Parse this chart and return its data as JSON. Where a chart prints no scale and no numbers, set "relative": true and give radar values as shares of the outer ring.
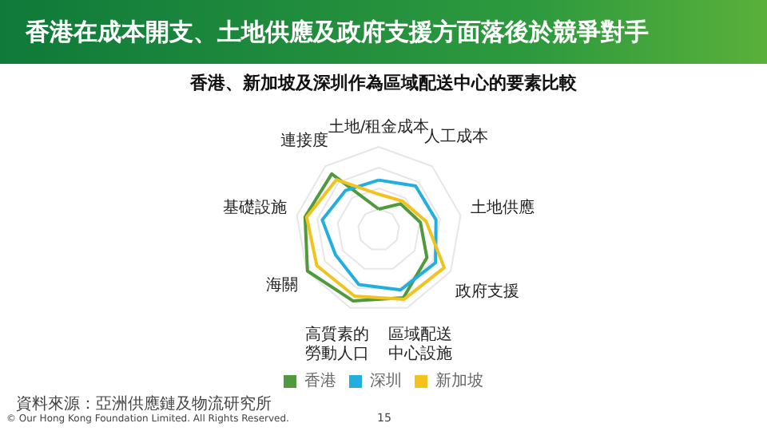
{
  "chart_data": {
    "type": "radar",
    "title": "香港在成本開支、土地供應及政府支援方面落後於競爭對手",
    "subtitle": "香港、新加坡及深圳作為區域配送中心的要素比較",
    "categories": [
      "土地/租金成本",
      "人工成本",
      "土地供應",
      "政府支援",
      "區域配送中心設施",
      "高質素的勞動人口",
      "海關",
      "基礎設施",
      "連接度"
    ],
    "relative": true,
    "series": [
      {
        "name": "香港",
        "color": "#4e9a3c",
        "values": [
          0.25,
          0.41,
          0.51,
          0.67,
          0.87,
          0.91,
          0.99,
          0.9,
          0.88
        ]
      },
      {
        "name": "深圳",
        "color": "#22aee0",
        "values": [
          0.6,
          0.69,
          0.7,
          0.79,
          0.77,
          0.7,
          0.6,
          0.69,
          0.62
        ]
      },
      {
        "name": "新加坡",
        "color": "#f2c21f",
        "values": [
          0.43,
          0.45,
          0.58,
          0.91,
          0.89,
          0.85,
          0.86,
          0.88,
          0.79
        ]
      }
    ],
    "legend": "bottom",
    "marker": "none",
    "line_style": "solid",
    "grid": true,
    "annotations": [
      "資料來源：亞洲供應鏈及物流研究所",
      "© Our Hong Kong Foundation Limited. All Rights Reserved.",
      "15"
    ]
  }
}
